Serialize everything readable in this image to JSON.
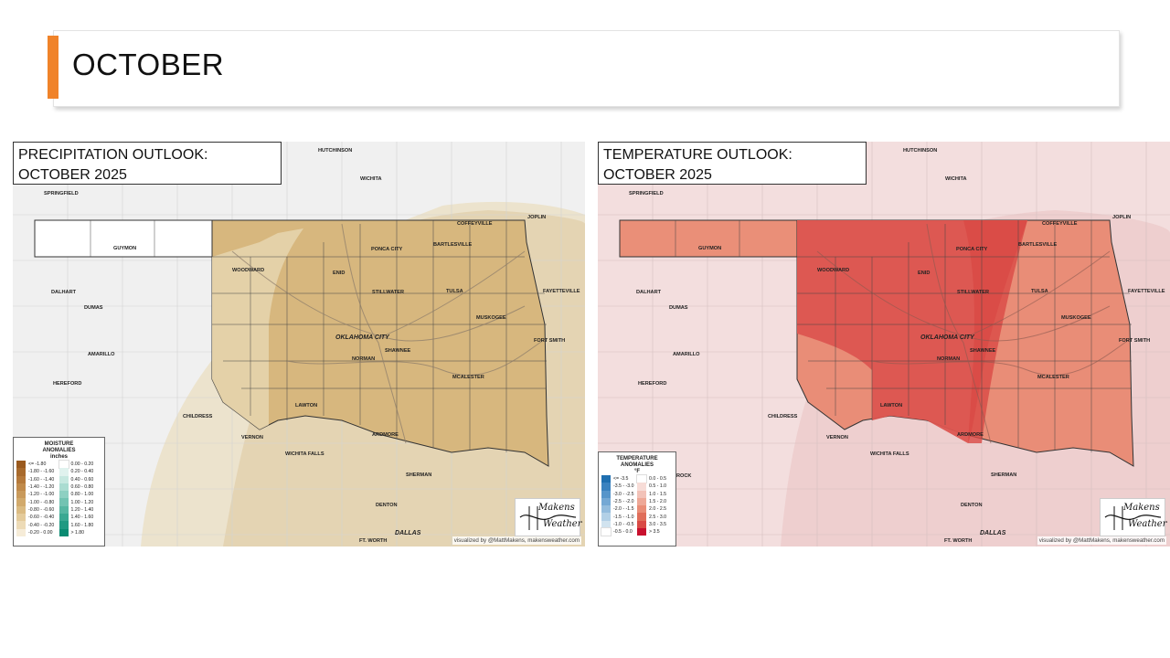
{
  "header": {
    "title": "OCTOBER",
    "accent_color": "#f0832a"
  },
  "maps": {
    "precip": {
      "title_line1": "PRECIPITATION OUTLOOK:",
      "title_line2": "OCTOBER 2025",
      "legend": {
        "title_line1": "MOISTURE",
        "title_line2": "ANOMALIES",
        "title_line3": "inches",
        "left": [
          {
            "label": "<= -1.80",
            "color": "#9a5a1e"
          },
          {
            "label": "-1.80 - -1.60",
            "color": "#a86a2c"
          },
          {
            "label": "-1.60 - -1.40",
            "color": "#b5793a"
          },
          {
            "label": "-1.40 - -1.20",
            "color": "#c08a4a"
          },
          {
            "label": "-1.20 - -1.00",
            "color": "#c99a5b"
          },
          {
            "label": "-1.00 - -0.80",
            "color": "#d2aa6c"
          },
          {
            "label": "-0.80 - -0.60",
            "color": "#dbbb82"
          },
          {
            "label": "-0.60 - -0.40",
            "color": "#e4cb9b"
          },
          {
            "label": "-0.40 - -0.20",
            "color": "#eddbb7"
          },
          {
            "label": "-0.20 - 0.00",
            "color": "#f6ecd8"
          }
        ],
        "right": [
          {
            "label": "0.00 - 0.20",
            "color": "#ffffff"
          },
          {
            "label": "0.20 - 0.40",
            "color": "#e0f2ee"
          },
          {
            "label": "0.40 - 0.60",
            "color": "#c6e8e0"
          },
          {
            "label": "0.60 - 0.80",
            "color": "#aadcd1"
          },
          {
            "label": "0.80 - 1.00",
            "color": "#8ed0c2"
          },
          {
            "label": "1.00 - 1.20",
            "color": "#72c3b2"
          },
          {
            "label": "1.20 - 1.40",
            "color": "#56b6a2"
          },
          {
            "label": "1.40 - 1.60",
            "color": "#3aa892"
          },
          {
            "label": "1.60 - 1.80",
            "color": "#209a82"
          },
          {
            "label": "> 1.80",
            "color": "#0a8b72"
          }
        ]
      }
    },
    "temp": {
      "title_line1": "TEMPERATURE OUTLOOK:",
      "title_line2": "OCTOBER 2025",
      "legend": {
        "title_line1": "TEMPERATURE",
        "title_line2": "ANOMALIES",
        "title_line3": "°F",
        "left": [
          {
            "label": "<= -3.5",
            "color": "#1f6fb0"
          },
          {
            "label": "-3.5 - -3.0",
            "color": "#3a82bf"
          },
          {
            "label": "-3.0 - -2.5",
            "color": "#5695ca"
          },
          {
            "label": "-2.5 - -2.0",
            "color": "#74a8d4"
          },
          {
            "label": "-2.0 - -1.5",
            "color": "#93bcdd"
          },
          {
            "label": "-1.5 - -1.0",
            "color": "#b2d0e6"
          },
          {
            "label": "-1.0 - -0.5",
            "color": "#d1e3ef"
          },
          {
            "label": "-0.5 - 0.0",
            "color": "#ffffff"
          }
        ],
        "right": [
          {
            "label": "0.0 - 0.5",
            "color": "#ffffff"
          },
          {
            "label": "0.5 - 1.0",
            "color": "#f7dcd7"
          },
          {
            "label": "1.0 - 1.5",
            "color": "#f2c2b8"
          },
          {
            "label": "1.5 - 2.0",
            "color": "#eea897"
          },
          {
            "label": "2.0 - 2.5",
            "color": "#e98d77"
          },
          {
            "label": "2.5 - 3.0",
            "color": "#e06e5a"
          },
          {
            "label": "3.0 - 3.5",
            "color": "#d94a45"
          },
          {
            "label": "> 3.5",
            "color": "#c8102e"
          }
        ]
      }
    }
  },
  "cities": {
    "hutchinson": "HUTCHINSON",
    "wichita": "WICHITA",
    "springfield": "SPRINGFIELD",
    "coffeyville": "COFFEYVILLE",
    "joplin": "JOPLIN",
    "guymon": "GUYMON",
    "woodward": "WOODWARD",
    "ponca_city": "PONCA CITY",
    "bartlesville": "BARTLESVILLE",
    "enid": "ENID",
    "fayetteville": "FAYETTEVILLE",
    "dalhart": "DALHART",
    "stillwater": "STILLWATER",
    "tulsa": "TULSA",
    "dumas": "DUMAS",
    "muskogee": "MUSKOGEE",
    "oklahoma_city": "OKLAHOMA CITY",
    "fort_smith": "FORT SMITH",
    "amarillo": "AMARILLO",
    "shawnee": "SHAWNEE",
    "norman": "NORMAN",
    "hereford": "HEREFORD",
    "mcalester": "MCALESTER",
    "lawton": "LAWTON",
    "childress": "CHILDRESS",
    "vernon": "VERNON",
    "ardmore": "ARDMORE",
    "wichita_falls": "WICHITA FALLS",
    "sherman": "SHERMAN",
    "denton": "DENTON",
    "dallas": "DALLAS",
    "ft_worth": "FT. WORTH",
    "rock": "ROCK"
  },
  "logo": {
    "line1": "Makens",
    "line2": "Weather"
  },
  "credit": "visualized by @MattMakens, makensweather.com",
  "colors": {
    "precip_bg": "#f0f0f0",
    "precip_dry_light": "#ece3cd",
    "precip_dry_mid": "#e0c8a0",
    "precip_dry_dark": "#d6b47a",
    "temp_bg": "#f3dede",
    "temp_light": "#e98d77",
    "temp_mid": "#e06e5a",
    "temp_dark": "#d94a45"
  }
}
